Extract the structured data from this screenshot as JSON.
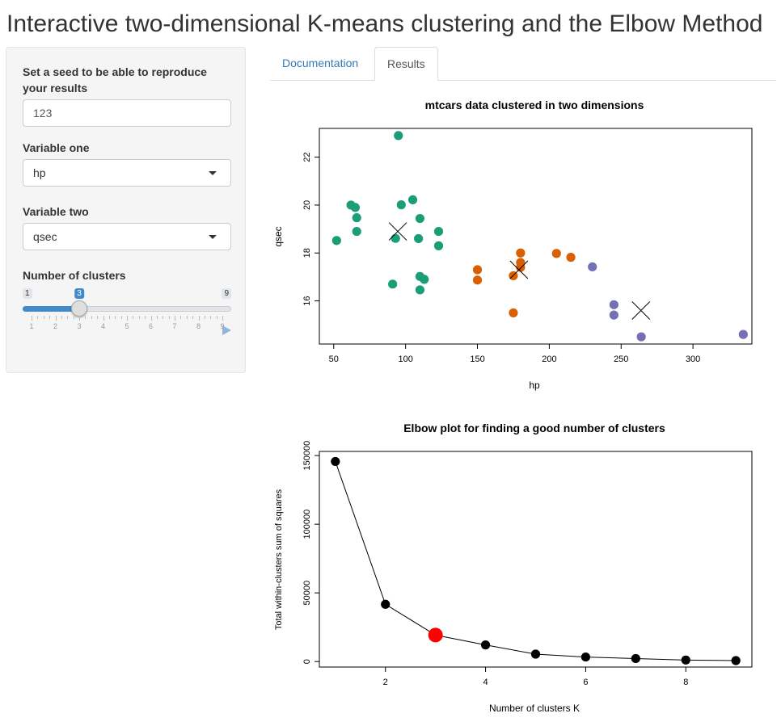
{
  "title": "Interactive two-dimensional K-means clustering and the Elbow Method",
  "sidebar": {
    "seed": {
      "label_line1": "Set a seed to be able to reproduce",
      "label_line2": "your results",
      "value": "123"
    },
    "var1": {
      "label": "Variable one",
      "value": "hp"
    },
    "var2": {
      "label": "Variable two",
      "value": "qsec"
    },
    "clusters": {
      "label": "Number of clusters",
      "min": 1,
      "max": 9,
      "value": 3,
      "min_label": "1",
      "max_label": "9",
      "value_label": "3",
      "tick_labels": [
        "1",
        "2",
        "3",
        "4",
        "5",
        "6",
        "7",
        "8",
        "9"
      ],
      "fill_color": "#428bca"
    }
  },
  "tabs": [
    {
      "label": "Documentation",
      "active": false
    },
    {
      "label": "Results",
      "active": true
    }
  ],
  "colors": {
    "cluster1": "#1b9e77",
    "cluster2": "#d95f02",
    "cluster3": "#7570b3",
    "highlight": "#ff0000",
    "link": "#337ab7"
  },
  "chart_data": [
    {
      "type": "scatter",
      "title": "mtcars data clustered in two dimensions",
      "xlabel": "hp",
      "ylabel": "qsec",
      "xlim": [
        40,
        341
      ],
      "ylim": [
        14.2,
        23.2
      ],
      "xticks": [
        50,
        100,
        150,
        200,
        250,
        300
      ],
      "yticks": [
        16,
        18,
        20,
        22
      ],
      "series": [
        {
          "color": "#1b9e77",
          "points": [
            [
              52,
              18.52
            ],
            [
              62,
              20.0
            ],
            [
              65,
              19.9
            ],
            [
              66,
              19.47
            ],
            [
              66,
              18.9
            ],
            [
              91,
              16.7
            ],
            [
              93,
              18.61
            ],
            [
              95,
              22.9
            ],
            [
              97,
              20.01
            ],
            [
              105,
              20.22
            ],
            [
              109,
              18.6
            ],
            [
              110,
              19.44
            ],
            [
              110,
              17.02
            ],
            [
              110,
              16.46
            ],
            [
              113,
              16.9
            ],
            [
              123,
              18.3
            ],
            [
              123,
              18.9
            ]
          ]
        },
        {
          "color": "#d95f02",
          "points": [
            [
              150,
              16.87
            ],
            [
              150,
              17.3
            ],
            [
              175,
              17.05
            ],
            [
              175,
              15.5
            ],
            [
              180,
              17.4
            ],
            [
              180,
              17.6
            ],
            [
              180,
              18.0
            ],
            [
              205,
              17.98
            ],
            [
              215,
              17.82
            ]
          ]
        },
        {
          "color": "#7570b3",
          "points": [
            [
              230,
              17.42
            ],
            [
              245,
              15.84
            ],
            [
              245,
              15.41
            ],
            [
              264,
              14.5
            ],
            [
              335,
              14.6
            ]
          ]
        }
      ],
      "centers": [
        [
          94.6,
          18.9
        ],
        [
          178.9,
          17.3
        ],
        [
          263.8,
          15.6
        ]
      ]
    },
    {
      "type": "line",
      "title": "Elbow plot for finding a good number of clusters",
      "xlabel": "Number of clusters K",
      "ylabel": "Total within-clusters sum of squares",
      "xlim": [
        0.68,
        9.32
      ],
      "ylim": [
        -4000,
        153000
      ],
      "xticks": [
        2,
        4,
        6,
        8
      ],
      "yticks": [
        0,
        50000,
        100000,
        150000
      ],
      "x": [
        1,
        2,
        3,
        4,
        5,
        6,
        7,
        8,
        9
      ],
      "y": [
        145700,
        41700,
        19300,
        12100,
        5400,
        3300,
        2200,
        1100,
        700
      ],
      "highlight_k": 3
    }
  ]
}
